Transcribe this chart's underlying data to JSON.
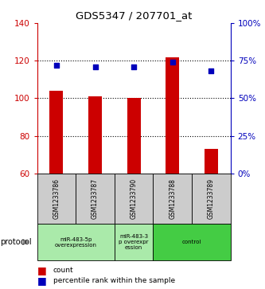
{
  "title": "GDS5347 / 207701_at",
  "samples": [
    "GSM1233786",
    "GSM1233787",
    "GSM1233790",
    "GSM1233788",
    "GSM1233789"
  ],
  "counts": [
    104,
    101,
    100,
    122,
    73
  ],
  "percentiles": [
    72,
    71,
    71,
    74,
    68
  ],
  "ylim_left": [
    60,
    140
  ],
  "ylim_right": [
    0,
    100
  ],
  "yticks_left": [
    60,
    80,
    100,
    120,
    140
  ],
  "yticks_right": [
    0,
    25,
    50,
    75,
    100
  ],
  "bar_color": "#cc0000",
  "dot_color": "#0000bb",
  "sample_box_color": "#cccccc",
  "protocol_light_color": "#aaeaaa",
  "protocol_dark_color": "#44cc44",
  "bar_bottom": 60,
  "left_axis_color": "#cc0000",
  "right_axis_color": "#0000bb",
  "legend_count": "count",
  "legend_percentile": "percentile rank within the sample",
  "protocol_label": "protocol",
  "group_defs": [
    [
      0,
      2,
      "miR-483-5p\noverexpression",
      "#aaeaaa"
    ],
    [
      2,
      3,
      "miR-483-3\np overexpr\nession",
      "#aaeaaa"
    ],
    [
      3,
      5,
      "control",
      "#44cc44"
    ]
  ]
}
